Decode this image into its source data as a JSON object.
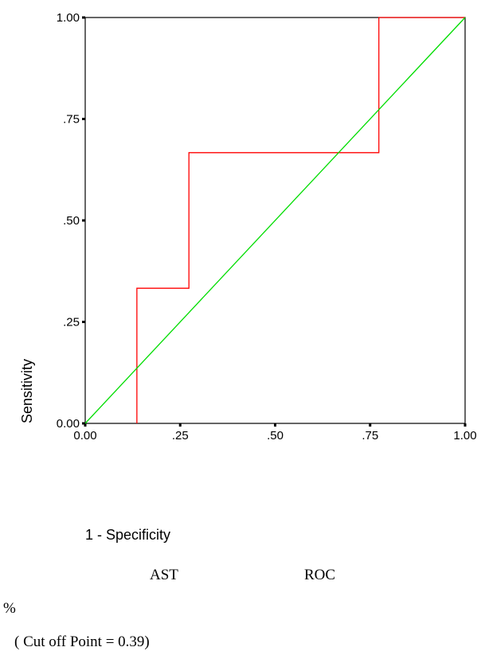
{
  "chart_data": {
    "type": "line",
    "xlabel": "1 - Specificity",
    "ylabel": "Sensitivity",
    "xlim": [
      0,
      1
    ],
    "ylim": [
      0,
      1
    ],
    "x_ticks": [
      0,
      0.25,
      0.5,
      0.75,
      1
    ],
    "y_ticks": [
      0,
      0.25,
      0.5,
      0.75,
      1
    ],
    "x_tick_labels": [
      "0.00",
      ".25",
      ".50",
      ".75",
      "1.00"
    ],
    "y_tick_labels": [
      "0.00",
      ".25",
      ".50",
      ".75",
      "1.00"
    ],
    "grid": false,
    "legend": "none",
    "series": [
      {
        "color": "#ff0000",
        "style": "step",
        "points": [
          [
            0.136,
            0.0
          ],
          [
            0.136,
            0.333
          ],
          [
            0.273,
            0.333
          ],
          [
            0.273,
            0.667
          ],
          [
            0.773,
            0.667
          ],
          [
            0.773,
            1.0
          ],
          [
            1.0,
            1.0
          ]
        ]
      },
      {
        "color": "#00dd00",
        "style": "reference",
        "points": [
          [
            0.0,
            0.0
          ],
          [
            1.0,
            1.0
          ]
        ]
      }
    ]
  },
  "captions": {
    "line1_a": "AST",
    "line1_b": "ROC",
    "line2": "%",
    "line3_a": "( Cut off Point = 0.39)",
    "line3_b": "%"
  }
}
